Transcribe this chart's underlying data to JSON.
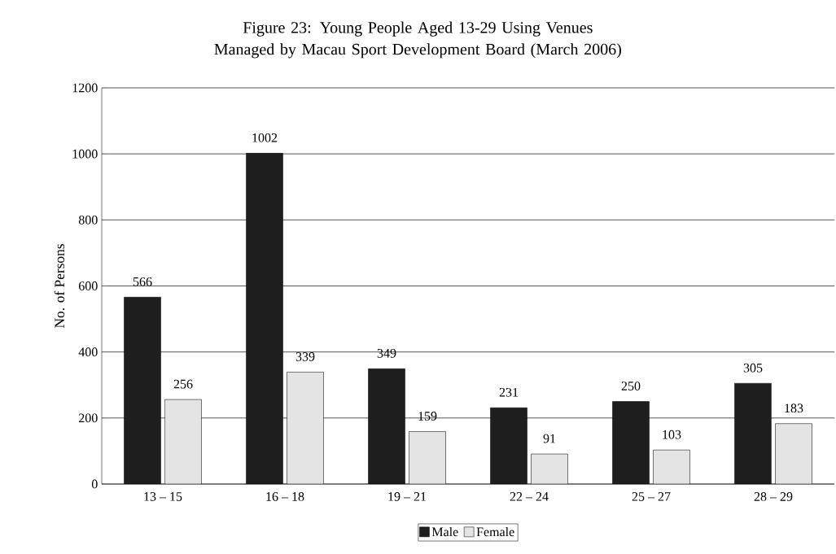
{
  "chart_data": {
    "type": "bar",
    "title": "Figure 23: Young People Aged 13-29 Using Venues Managed by Macau Sport Development Board  (March 2006)",
    "ylabel": "No. of Persons",
    "categories": [
      "13 – 15",
      "16 – 18",
      "19 – 21",
      "22 – 24",
      "25 – 27",
      "28 – 29"
    ],
    "series": [
      {
        "name": "Male",
        "color": "#1e1e1e",
        "values": [
          566,
          1002,
          349,
          231,
          250,
          305
        ]
      },
      {
        "name": "Female",
        "color": "#e4e4e4",
        "values": [
          256,
          339,
          159,
          91,
          103,
          183
        ]
      }
    ],
    "ylim": [
      0,
      1200
    ],
    "yticks": [
      0,
      200,
      400,
      600,
      800,
      1000,
      1200
    ],
    "grid": "y",
    "legend": "bottom",
    "data_labels": true
  }
}
